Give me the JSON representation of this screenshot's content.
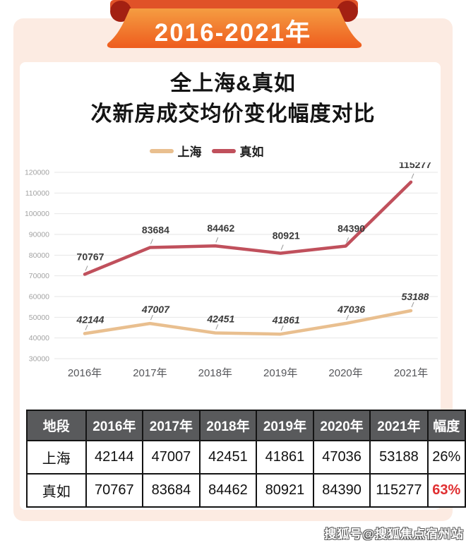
{
  "banner": {
    "label": "2016-2021年"
  },
  "title": {
    "line1": "全上海&真如",
    "line2": "次新房成交均价变化幅度对比"
  },
  "colors": {
    "card_bg": "#fcebe2",
    "banner_strip": "#e05228",
    "banner_fold": "#a32012",
    "banner_front_top": "#f59d42",
    "banner_front_bottom": "#ee5c1e",
    "table_header_bg": "#595a5c",
    "highlight_red": "#e02f31",
    "shanghai_line": "#e9bf8f",
    "zhenru_line": "#c0505c"
  },
  "chart_data": [
    {
      "type": "line",
      "categories": [
        "2016年",
        "2017年",
        "2018年",
        "2019年",
        "2020年",
        "2021年"
      ],
      "series": [
        {
          "name": "上海",
          "color": "#e9bf8f",
          "label_style": "italic",
          "values": [
            42144,
            47007,
            42451,
            41861,
            47036,
            53188
          ]
        },
        {
          "name": "真如",
          "color": "#c0505c",
          "label_style": "normal",
          "values": [
            70767,
            83684,
            84462,
            80921,
            84390,
            115277
          ]
        }
      ],
      "ylim": [
        30000,
        120000
      ],
      "ytick_step": 10000,
      "yticks": [
        30000,
        40000,
        50000,
        60000,
        70000,
        80000,
        90000,
        100000,
        110000,
        120000
      ],
      "grid": "horizontal",
      "legend_position": "top",
      "xlabel": "",
      "ylabel": ""
    },
    {
      "type": "table",
      "columns": [
        "地段",
        "2016年",
        "2017年",
        "2018年",
        "2019年",
        "2020年",
        "2021年",
        "幅度"
      ],
      "rows": [
        [
          "上海",
          "42144",
          "47007",
          "42451",
          "41861",
          "47036",
          "53188",
          "26%"
        ],
        [
          "真如",
          "70767",
          "83684",
          "84462",
          "80921",
          "84390",
          "115277",
          "63%"
        ]
      ],
      "highlight": {
        "row": 1,
        "col": 7,
        "color": "#e02f31"
      }
    }
  ],
  "watermark": "搜狐号@搜狐焦点宿州站"
}
